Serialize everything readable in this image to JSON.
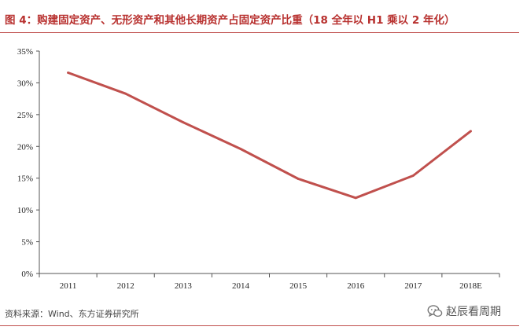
{
  "title": "图 4：购建固定资产、无形资产和其他长期资产占固定资产比重（18 全年以 H1 乘以 2 年化）",
  "source": "资料来源：Wind、东方证券研究所",
  "watermark": {
    "text": "赵辰看周期",
    "icon": "wechat-icon"
  },
  "colors": {
    "title": "#b8312f",
    "line": "#c0504d",
    "rule": "#c0504d"
  },
  "chart_data": {
    "type": "line",
    "title": "",
    "xlabel": "",
    "ylabel": "",
    "categories": [
      "2011",
      "2012",
      "2013",
      "2014",
      "2015",
      "2016",
      "2017",
      "2018E"
    ],
    "series": [
      {
        "values": [
          31.6,
          28.3,
          23.8,
          19.6,
          14.9,
          11.9,
          15.4,
          22.4
        ]
      }
    ],
    "yticks": [
      "0%",
      "5%",
      "10%",
      "15%",
      "20%",
      "25%",
      "30%",
      "35%"
    ],
    "ylim": [
      0,
      35
    ],
    "grid": false,
    "legend": "none"
  }
}
